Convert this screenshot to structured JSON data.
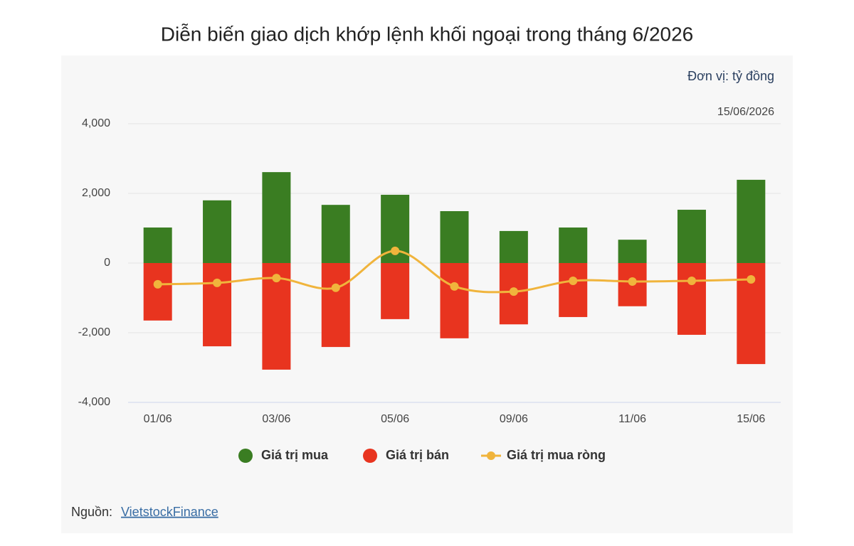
{
  "chart_data": {
    "type": "bar",
    "title": "Diễn biến giao dịch khớp lệnh khối ngoại trong tháng 6/2026",
    "unit_note": "Đơn vị: tỷ đồng",
    "date_note": "15/06/2026",
    "categories": [
      "01/06",
      null,
      "03/06",
      null,
      "05/06",
      null,
      "09/06",
      null,
      "11/06",
      null,
      "15/06"
    ],
    "series": [
      {
        "name": "Giá trị mua",
        "type": "bar",
        "color": "#3a7d22",
        "values": [
          1020,
          1800,
          2610,
          1670,
          1960,
          1490,
          920,
          1020,
          670,
          1530,
          2390
        ]
      },
      {
        "name": "Giá trị bán",
        "type": "bar",
        "color": "#e8341f",
        "values": [
          -1650,
          -2390,
          -3060,
          -2410,
          -1610,
          -2160,
          -1760,
          -1550,
          -1240,
          -2060,
          -2900
        ]
      },
      {
        "name": "Giá trị mua ròng",
        "type": "line",
        "color": "#f0b43c",
        "values": [
          -610,
          -570,
          -430,
          -710,
          350,
          -670,
          -820,
          -510,
          -530,
          -510,
          -470
        ]
      }
    ],
    "ylim": [
      -4000,
      4000
    ],
    "yticks": [
      {
        "value": -4000,
        "label": "-4,000"
      },
      {
        "value": -2000,
        "label": "-2,000"
      },
      0,
      {
        "value": 2000,
        "label": "2,000"
      },
      {
        "value": 4000,
        "label": "4,000"
      }
    ],
    "grid": true,
    "source_label": "Nguồn:",
    "source_link": "VietstockFinance"
  }
}
